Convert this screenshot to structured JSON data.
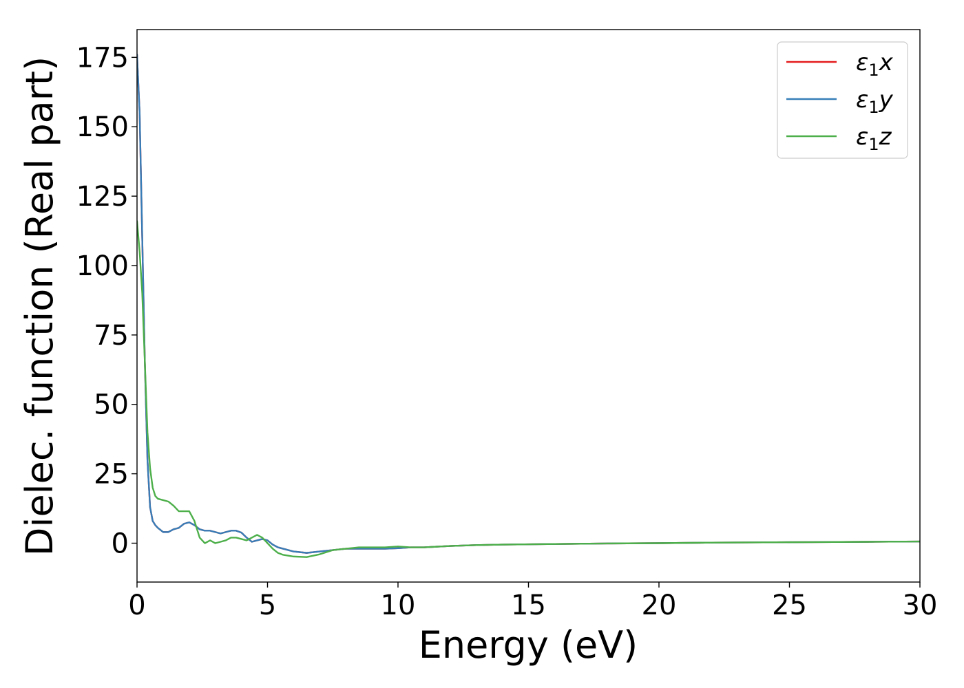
{
  "chart_data": {
    "type": "line",
    "xlabel": "Energy (eV)",
    "ylabel": "Dielec. function (Real part)",
    "xlim": [
      0,
      30
    ],
    "ylim": [
      -14,
      185
    ],
    "xticks": [
      0,
      5,
      10,
      15,
      20,
      25,
      30
    ],
    "yticks": [
      0,
      25,
      50,
      75,
      100,
      125,
      150,
      175
    ],
    "grid": false,
    "legend_position": "top-right",
    "series": [
      {
        "name": "x",
        "legend_symbol": "ε",
        "legend_sub": "1",
        "color": "#e41a1c",
        "x": [
          0,
          0.1,
          0.2,
          0.3,
          0.4,
          0.5,
          0.6,
          0.7,
          0.8,
          1.0,
          1.2,
          1.4,
          1.6,
          1.8,
          2.0,
          2.2,
          2.4,
          2.6,
          2.8,
          3.0,
          3.2,
          3.4,
          3.6,
          3.8,
          4.0,
          4.2,
          4.4,
          4.6,
          4.8,
          5.0,
          5.2,
          5.4,
          5.6,
          6.0,
          6.5,
          7.0,
          7.5,
          8.0,
          8.5,
          9.0,
          9.5,
          10.0,
          10.5,
          11.0,
          12.0,
          13.0,
          14.0,
          16.0,
          18.0,
          20.0,
          22.0,
          24.0,
          26.0,
          28.0,
          30.0
        ],
        "y": [
          176,
          155,
          110,
          65,
          30,
          13,
          8,
          6.5,
          5.5,
          4,
          4,
          5,
          5.5,
          7,
          7.5,
          6.5,
          5,
          4.5,
          4.5,
          4,
          3.5,
          4,
          4.5,
          4.5,
          3.8,
          2,
          0.5,
          1,
          1.5,
          1,
          -0.5,
          -1.5,
          -2,
          -3,
          -3.5,
          -3,
          -2.5,
          -2,
          -2,
          -2,
          -2,
          -1.8,
          -1.5,
          -1.5,
          -1,
          -0.7,
          -0.5,
          -0.3,
          -0.1,
          0,
          0.2,
          0.3,
          0.4,
          0.5,
          0.6
        ]
      },
      {
        "name": "y",
        "legend_symbol": "ε",
        "legend_sub": "1",
        "color": "#377eb8",
        "x": [
          0,
          0.1,
          0.2,
          0.3,
          0.4,
          0.5,
          0.6,
          0.7,
          0.8,
          1.0,
          1.2,
          1.4,
          1.6,
          1.8,
          2.0,
          2.2,
          2.4,
          2.6,
          2.8,
          3.0,
          3.2,
          3.4,
          3.6,
          3.8,
          4.0,
          4.2,
          4.4,
          4.6,
          4.8,
          5.0,
          5.2,
          5.4,
          5.6,
          6.0,
          6.5,
          7.0,
          7.5,
          8.0,
          8.5,
          9.0,
          9.5,
          10.0,
          10.5,
          11.0,
          12.0,
          13.0,
          14.0,
          16.0,
          18.0,
          20.0,
          22.0,
          24.0,
          26.0,
          28.0,
          30.0
        ],
        "y": [
          176,
          155,
          110,
          65,
          30,
          13,
          8,
          6.5,
          5.5,
          4,
          4,
          5,
          5.5,
          7,
          7.5,
          6.5,
          5,
          4.5,
          4.5,
          4,
          3.5,
          4,
          4.5,
          4.5,
          3.8,
          2,
          0.5,
          1,
          1.5,
          1,
          -0.5,
          -1.5,
          -2,
          -3,
          -3.5,
          -3,
          -2.5,
          -2,
          -2,
          -2,
          -2,
          -1.8,
          -1.5,
          -1.5,
          -1,
          -0.7,
          -0.5,
          -0.3,
          -0.1,
          0,
          0.2,
          0.3,
          0.4,
          0.5,
          0.6
        ]
      },
      {
        "name": "z",
        "legend_symbol": "ε",
        "legend_sub": "1",
        "color": "#4daf4a",
        "x": [
          0,
          0.1,
          0.2,
          0.3,
          0.4,
          0.5,
          0.6,
          0.7,
          0.8,
          1.0,
          1.2,
          1.4,
          1.6,
          1.8,
          2.0,
          2.2,
          2.4,
          2.6,
          2.8,
          3.0,
          3.2,
          3.4,
          3.6,
          3.8,
          4.0,
          4.2,
          4.4,
          4.6,
          4.8,
          5.0,
          5.2,
          5.4,
          5.6,
          6.0,
          6.5,
          7.0,
          7.5,
          8.0,
          8.5,
          9.0,
          9.5,
          10.0,
          10.5,
          11.0,
          12.0,
          13.0,
          14.0,
          16.0,
          18.0,
          20.0,
          22.0,
          24.0,
          26.0,
          28.0,
          30.0
        ],
        "y": [
          116,
          105,
          90,
          65,
          40,
          27,
          20,
          17,
          16,
          15.5,
          15,
          13.5,
          11.5,
          11.5,
          11.5,
          8,
          2,
          0,
          1,
          0,
          0.5,
          1,
          2,
          2,
          1.5,
          1,
          2,
          3,
          2,
          0,
          -2,
          -3.5,
          -4.2,
          -4.8,
          -5,
          -4,
          -2.5,
          -2,
          -1.5,
          -1.5,
          -1.5,
          -1.2,
          -1.5,
          -1.5,
          -1,
          -0.7,
          -0.5,
          -0.3,
          -0.1,
          0,
          0.2,
          0.3,
          0.4,
          0.5,
          0.6
        ]
      }
    ]
  }
}
